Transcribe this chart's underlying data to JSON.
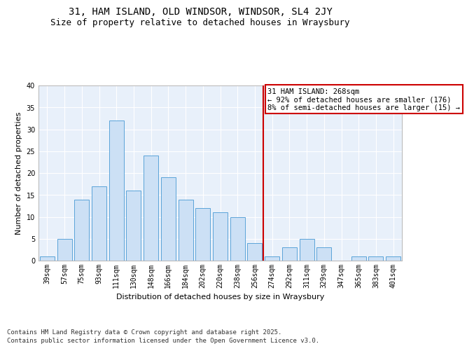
{
  "title_line1": "31, HAM ISLAND, OLD WINDSOR, WINDSOR, SL4 2JY",
  "title_line2": "Size of property relative to detached houses in Wraysbury",
  "xlabel": "Distribution of detached houses by size in Wraysbury",
  "ylabel": "Number of detached properties",
  "categories": [
    "39sqm",
    "57sqm",
    "75sqm",
    "93sqm",
    "111sqm",
    "130sqm",
    "148sqm",
    "166sqm",
    "184sqm",
    "202sqm",
    "220sqm",
    "238sqm",
    "256sqm",
    "274sqm",
    "292sqm",
    "311sqm",
    "329sqm",
    "347sqm",
    "365sqm",
    "383sqm",
    "401sqm"
  ],
  "values": [
    1,
    5,
    14,
    17,
    32,
    16,
    24,
    19,
    14,
    12,
    11,
    10,
    4,
    1,
    3,
    5,
    3,
    0,
    1,
    1,
    1
  ],
  "bar_color": "#cce0f5",
  "bar_edge_color": "#5ba3d9",
  "bg_color": "#e8f0fa",
  "grid_color": "#ffffff",
  "vline_label": "31 HAM ISLAND: 268sqm",
  "annotation_pct_smaller": "← 92% of detached houses are smaller (176)",
  "annotation_pct_larger": "8% of semi-detached houses are larger (15) →",
  "annotation_box_color": "#cc0000",
  "ylim": [
    0,
    40
  ],
  "yticks": [
    0,
    5,
    10,
    15,
    20,
    25,
    30,
    35,
    40
  ],
  "footnote_line1": "Contains HM Land Registry data © Crown copyright and database right 2025.",
  "footnote_line2": "Contains public sector information licensed under the Open Government Licence v3.0.",
  "title_fontsize": 10,
  "subtitle_fontsize": 9,
  "axis_label_fontsize": 8,
  "tick_fontsize": 7,
  "footnote_fontsize": 6.5,
  "annot_fontsize": 7.5
}
